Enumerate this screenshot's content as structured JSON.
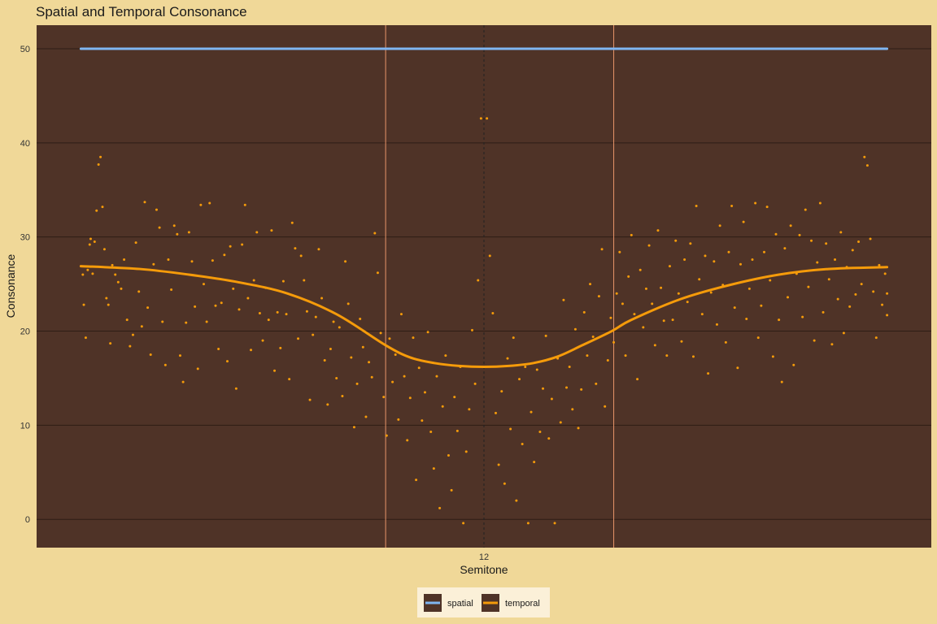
{
  "chart_data": {
    "type": "scatter",
    "title": "Spatial and Temporal Consonance",
    "xlabel": "Semitone",
    "ylabel": "Consonance",
    "x_ticks": [
      12
    ],
    "y_ticks": [
      0,
      10,
      20,
      30,
      40,
      50
    ],
    "xlim": [
      7.45,
      16.55
    ],
    "ylim": [
      -3,
      52.5
    ],
    "grid": true,
    "legend_position": "bottom",
    "reference_lines": [
      {
        "x": 11,
        "style": "solid",
        "color": "#E8956A"
      },
      {
        "x": 12,
        "style": "dashed",
        "color": "#222222"
      },
      {
        "x": 13.32,
        "style": "solid",
        "color": "#E8956A"
      }
    ],
    "series": [
      {
        "name": "spatial",
        "kind": "line",
        "color": "#7FB6F2",
        "x": [
          7.9,
          16.1
        ],
        "y": [
          50,
          50
        ]
      },
      {
        "name": "temporal",
        "kind": "smooth",
        "color": "#F59B0A",
        "x": [
          7.9,
          8.5,
          9.0,
          9.5,
          10.0,
          10.5,
          11.0,
          11.25,
          11.5,
          11.75,
          12.0,
          12.25,
          12.5,
          12.75,
          13.0,
          13.3,
          13.5,
          14.0,
          14.5,
          15.0,
          15.5,
          16.1
        ],
        "y": [
          26.9,
          26.6,
          26.0,
          25.2,
          24.0,
          21.8,
          18.5,
          17.2,
          16.6,
          16.3,
          16.2,
          16.3,
          16.6,
          17.3,
          18.5,
          20.0,
          21.2,
          23.4,
          24.9,
          26.0,
          26.6,
          26.8
        ]
      },
      {
        "name": "temporal-points",
        "kind": "points",
        "color": "#F59B0A",
        "points": [
          [
            7.92,
            26.0
          ],
          [
            7.93,
            22.8
          ],
          [
            7.95,
            19.3
          ],
          [
            7.97,
            26.5
          ],
          [
            7.99,
            29.2
          ],
          [
            8.0,
            29.8
          ],
          [
            8.02,
            26.1
          ],
          [
            8.04,
            29.5
          ],
          [
            8.06,
            32.8
          ],
          [
            8.08,
            37.7
          ],
          [
            8.1,
            38.5
          ],
          [
            8.12,
            33.2
          ],
          [
            8.14,
            28.7
          ],
          [
            8.16,
            23.5
          ],
          [
            8.18,
            22.8
          ],
          [
            8.2,
            18.7
          ],
          [
            8.22,
            27.0
          ],
          [
            8.25,
            26.0
          ],
          [
            8.28,
            25.2
          ],
          [
            8.31,
            24.5
          ],
          [
            8.34,
            27.6
          ],
          [
            8.37,
            21.2
          ],
          [
            8.4,
            18.4
          ],
          [
            8.43,
            19.6
          ],
          [
            8.46,
            29.4
          ],
          [
            8.49,
            24.2
          ],
          [
            8.52,
            20.5
          ],
          [
            8.55,
            33.7
          ],
          [
            8.58,
            22.5
          ],
          [
            8.61,
            17.5
          ],
          [
            8.64,
            27.1
          ],
          [
            8.67,
            32.9
          ],
          [
            8.7,
            31.0
          ],
          [
            8.73,
            21.0
          ],
          [
            8.76,
            16.4
          ],
          [
            8.79,
            27.6
          ],
          [
            8.82,
            24.4
          ],
          [
            8.85,
            31.2
          ],
          [
            8.88,
            30.3
          ],
          [
            8.91,
            17.4
          ],
          [
            8.94,
            14.6
          ],
          [
            8.97,
            20.9
          ],
          [
            9.0,
            30.5
          ],
          [
            9.03,
            27.4
          ],
          [
            9.06,
            22.6
          ],
          [
            9.09,
            16.0
          ],
          [
            9.12,
            33.4
          ],
          [
            9.15,
            25.0
          ],
          [
            9.18,
            21.0
          ],
          [
            9.21,
            33.6
          ],
          [
            9.24,
            27.5
          ],
          [
            9.27,
            22.7
          ],
          [
            9.3,
            18.1
          ],
          [
            9.33,
            23.0
          ],
          [
            9.36,
            28.1
          ],
          [
            9.39,
            16.8
          ],
          [
            9.42,
            29.0
          ],
          [
            9.45,
            24.5
          ],
          [
            9.48,
            13.9
          ],
          [
            9.51,
            22.3
          ],
          [
            9.54,
            29.2
          ],
          [
            9.57,
            33.4
          ],
          [
            9.6,
            23.5
          ],
          [
            9.63,
            18.0
          ],
          [
            9.66,
            25.4
          ],
          [
            9.69,
            30.5
          ],
          [
            9.72,
            21.9
          ],
          [
            9.75,
            19.0
          ],
          [
            9.78,
            24.6
          ],
          [
            9.81,
            21.2
          ],
          [
            9.84,
            30.7
          ],
          [
            9.87,
            15.8
          ],
          [
            9.9,
            22.0
          ],
          [
            9.93,
            18.2
          ],
          [
            9.96,
            25.3
          ],
          [
            9.99,
            21.8
          ],
          [
            10.02,
            14.9
          ],
          [
            10.05,
            31.5
          ],
          [
            10.08,
            28.8
          ],
          [
            10.11,
            19.2
          ],
          [
            10.14,
            28.0
          ],
          [
            10.17,
            25.4
          ],
          [
            10.2,
            22.1
          ],
          [
            10.23,
            12.7
          ],
          [
            10.26,
            19.6
          ],
          [
            10.29,
            21.5
          ],
          [
            10.32,
            28.7
          ],
          [
            10.35,
            23.5
          ],
          [
            10.38,
            16.9
          ],
          [
            10.41,
            12.2
          ],
          [
            10.44,
            18.1
          ],
          [
            10.47,
            21.0
          ],
          [
            10.5,
            15.0
          ],
          [
            10.53,
            20.4
          ],
          [
            10.56,
            13.1
          ],
          [
            10.59,
            27.4
          ],
          [
            10.62,
            22.9
          ],
          [
            10.65,
            17.2
          ],
          [
            10.68,
            9.8
          ],
          [
            10.71,
            14.4
          ],
          [
            10.74,
            21.3
          ],
          [
            10.77,
            18.3
          ],
          [
            10.8,
            10.9
          ],
          [
            10.83,
            16.7
          ],
          [
            10.86,
            15.1
          ],
          [
            10.89,
            30.4
          ],
          [
            10.92,
            26.2
          ],
          [
            10.95,
            19.8
          ],
          [
            10.98,
            13.0
          ],
          [
            11.01,
            8.9
          ],
          [
            11.04,
            19.2
          ],
          [
            11.07,
            14.6
          ],
          [
            11.1,
            17.5
          ],
          [
            11.13,
            10.6
          ],
          [
            11.16,
            21.8
          ],
          [
            11.19,
            15.2
          ],
          [
            11.22,
            8.4
          ],
          [
            11.25,
            12.9
          ],
          [
            11.28,
            19.3
          ],
          [
            11.31,
            4.2
          ],
          [
            11.34,
            16.1
          ],
          [
            11.37,
            10.5
          ],
          [
            11.4,
            13.5
          ],
          [
            11.43,
            19.9
          ],
          [
            11.46,
            9.3
          ],
          [
            11.49,
            5.4
          ],
          [
            11.52,
            15.2
          ],
          [
            11.55,
            1.2
          ],
          [
            11.58,
            12.0
          ],
          [
            11.61,
            17.4
          ],
          [
            11.64,
            6.8
          ],
          [
            11.67,
            3.1
          ],
          [
            11.7,
            13.0
          ],
          [
            11.73,
            9.4
          ],
          [
            11.76,
            16.2
          ],
          [
            11.79,
            -0.4
          ],
          [
            11.82,
            7.2
          ],
          [
            11.85,
            11.7
          ],
          [
            11.88,
            20.1
          ],
          [
            11.91,
            14.4
          ],
          [
            11.94,
            25.4
          ],
          [
            11.97,
            42.6
          ],
          [
            12.03,
            42.6
          ],
          [
            12.06,
            28.0
          ],
          [
            12.09,
            21.9
          ],
          [
            12.12,
            11.3
          ],
          [
            12.15,
            5.8
          ],
          [
            12.18,
            13.6
          ],
          [
            12.21,
            3.8
          ],
          [
            12.24,
            17.1
          ],
          [
            12.27,
            9.6
          ],
          [
            12.3,
            19.3
          ],
          [
            12.33,
            2.0
          ],
          [
            12.36,
            14.9
          ],
          [
            12.39,
            8.0
          ],
          [
            12.42,
            16.2
          ],
          [
            12.45,
            -0.4
          ],
          [
            12.48,
            11.4
          ],
          [
            12.51,
            6.1
          ],
          [
            12.54,
            15.9
          ],
          [
            12.57,
            9.3
          ],
          [
            12.6,
            13.9
          ],
          [
            12.63,
            19.5
          ],
          [
            12.66,
            8.6
          ],
          [
            12.69,
            12.8
          ],
          [
            12.72,
            -0.4
          ],
          [
            12.75,
            17.1
          ],
          [
            12.78,
            10.3
          ],
          [
            12.81,
            23.3
          ],
          [
            12.84,
            14.0
          ],
          [
            12.87,
            16.2
          ],
          [
            12.9,
            11.7
          ],
          [
            12.93,
            20.2
          ],
          [
            12.96,
            9.7
          ],
          [
            12.99,
            13.8
          ],
          [
            13.02,
            22.0
          ],
          [
            13.05,
            17.4
          ],
          [
            13.08,
            25.0
          ],
          [
            13.11,
            19.4
          ],
          [
            13.14,
            14.4
          ],
          [
            13.17,
            23.7
          ],
          [
            13.2,
            28.7
          ],
          [
            13.23,
            12.0
          ],
          [
            13.26,
            16.9
          ],
          [
            13.29,
            21.4
          ],
          [
            13.32,
            18.8
          ],
          [
            13.35,
            24.0
          ],
          [
            13.38,
            28.4
          ],
          [
            13.41,
            22.9
          ],
          [
            13.44,
            17.4
          ],
          [
            13.47,
            25.8
          ],
          [
            13.5,
            30.2
          ],
          [
            13.53,
            21.8
          ],
          [
            13.56,
            14.9
          ],
          [
            13.59,
            26.5
          ],
          [
            13.62,
            20.4
          ],
          [
            13.65,
            24.5
          ],
          [
            13.68,
            29.1
          ],
          [
            13.71,
            22.9
          ],
          [
            13.74,
            18.5
          ],
          [
            13.77,
            30.7
          ],
          [
            13.8,
            24.6
          ],
          [
            13.83,
            21.1
          ],
          [
            13.86,
            17.4
          ],
          [
            13.89,
            26.9
          ],
          [
            13.92,
            21.2
          ],
          [
            13.95,
            29.6
          ],
          [
            13.98,
            24.0
          ],
          [
            14.01,
            18.9
          ],
          [
            14.04,
            27.6
          ],
          [
            14.07,
            23.1
          ],
          [
            14.1,
            29.3
          ],
          [
            14.13,
            17.3
          ],
          [
            14.16,
            33.3
          ],
          [
            14.19,
            25.5
          ],
          [
            14.22,
            21.8
          ],
          [
            14.25,
            28.0
          ],
          [
            14.28,
            15.5
          ],
          [
            14.31,
            24.1
          ],
          [
            14.34,
            27.4
          ],
          [
            14.37,
            20.7
          ],
          [
            14.4,
            31.2
          ],
          [
            14.43,
            24.9
          ],
          [
            14.46,
            18.8
          ],
          [
            14.49,
            28.4
          ],
          [
            14.52,
            33.3
          ],
          [
            14.55,
            22.5
          ],
          [
            14.58,
            16.1
          ],
          [
            14.61,
            27.1
          ],
          [
            14.64,
            31.6
          ],
          [
            14.67,
            21.3
          ],
          [
            14.7,
            24.5
          ],
          [
            14.73,
            27.6
          ],
          [
            14.76,
            33.6
          ],
          [
            14.79,
            19.3
          ],
          [
            14.82,
            22.7
          ],
          [
            14.85,
            28.4
          ],
          [
            14.88,
            33.2
          ],
          [
            14.91,
            25.4
          ],
          [
            14.94,
            17.3
          ],
          [
            14.97,
            30.3
          ],
          [
            15.0,
            21.2
          ],
          [
            15.03,
            14.6
          ],
          [
            15.06,
            28.8
          ],
          [
            15.09,
            23.6
          ],
          [
            15.12,
            31.2
          ],
          [
            15.15,
            16.4
          ],
          [
            15.18,
            26.1
          ],
          [
            15.21,
            30.2
          ],
          [
            15.24,
            21.5
          ],
          [
            15.27,
            32.9
          ],
          [
            15.3,
            24.7
          ],
          [
            15.33,
            29.6
          ],
          [
            15.36,
            19.0
          ],
          [
            15.39,
            27.3
          ],
          [
            15.42,
            33.6
          ],
          [
            15.45,
            22.0
          ],
          [
            15.48,
            29.3
          ],
          [
            15.51,
            25.5
          ],
          [
            15.54,
            18.6
          ],
          [
            15.57,
            27.6
          ],
          [
            15.6,
            23.4
          ],
          [
            15.63,
            30.5
          ],
          [
            15.66,
            19.8
          ],
          [
            15.69,
            26.8
          ],
          [
            15.72,
            22.6
          ],
          [
            15.75,
            28.6
          ],
          [
            15.78,
            23.9
          ],
          [
            15.81,
            29.5
          ],
          [
            15.84,
            25.0
          ],
          [
            15.87,
            38.5
          ],
          [
            15.9,
            37.6
          ],
          [
            15.93,
            29.8
          ],
          [
            15.96,
            24.2
          ],
          [
            15.99,
            19.3
          ],
          [
            16.02,
            27.0
          ],
          [
            16.05,
            22.8
          ],
          [
            16.08,
            26.1
          ],
          [
            16.1,
            21.7
          ],
          [
            16.1,
            24.0
          ]
        ]
      }
    ]
  },
  "legend": {
    "items": [
      {
        "label": "spatial",
        "color": "#7FB6F2"
      },
      {
        "label": "temporal",
        "color": "#F59B0A"
      }
    ]
  },
  "colors": {
    "page_background": "#F0D898",
    "panel_background": "#4F3327",
    "grid": "#2E1D15",
    "legend_background": "#FBF0D8"
  }
}
